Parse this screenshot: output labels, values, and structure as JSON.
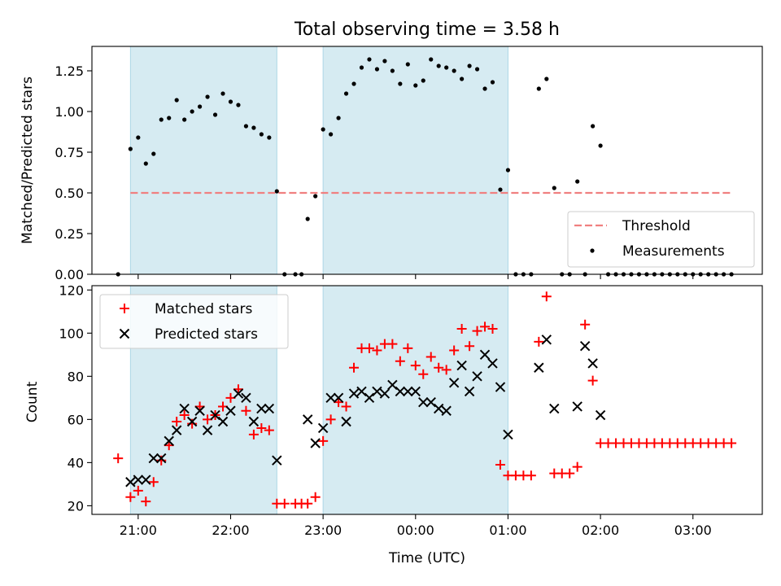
{
  "chart_data": [
    {
      "type": "scatter",
      "title": "Total observing time = 3.58 h",
      "xlabel": "",
      "ylabel": "Matched/Predicted stars",
      "xlim": [
        "20:30",
        "03:45"
      ],
      "ylim": [
        0,
        1.4
      ],
      "yticks": [
        "0.00",
        "0.25",
        "0.50",
        "0.75",
        "1.00",
        "1.25"
      ],
      "shaded_intervals": [
        [
          "20:55",
          "22:30"
        ],
        [
          "23:00",
          "01:00"
        ]
      ],
      "shade_color": "#add8e6",
      "threshold": {
        "name": "Threshold",
        "value": 0.5,
        "x_range": [
          "20:55",
          "03:25"
        ],
        "color": "#f08080"
      },
      "legend": {
        "position": "lower-right",
        "entries": [
          "Threshold",
          "Measurements"
        ]
      },
      "series": [
        {
          "name": "Measurements",
          "color": "#000000",
          "points": [
            [
              "20:47",
              0.0
            ],
            [
              "20:55",
              0.77
            ],
            [
              "21:00",
              0.84
            ],
            [
              "21:05",
              0.68
            ],
            [
              "21:10",
              0.74
            ],
            [
              "21:15",
              0.95
            ],
            [
              "21:20",
              0.96
            ],
            [
              "21:25",
              1.07
            ],
            [
              "21:30",
              0.95
            ],
            [
              "21:35",
              1.0
            ],
            [
              "21:40",
              1.03
            ],
            [
              "21:45",
              1.09
            ],
            [
              "21:50",
              0.98
            ],
            [
              "21:55",
              1.11
            ],
            [
              "22:00",
              1.06
            ],
            [
              "22:05",
              1.04
            ],
            [
              "22:10",
              0.91
            ],
            [
              "22:15",
              0.9
            ],
            [
              "22:20",
              0.86
            ],
            [
              "22:25",
              0.84
            ],
            [
              "22:30",
              0.51
            ],
            [
              "22:35",
              0.0
            ],
            [
              "22:42",
              0.0
            ],
            [
              "22:46",
              0.0
            ],
            [
              "22:50",
              0.34
            ],
            [
              "22:55",
              0.48
            ],
            [
              "23:00",
              0.89
            ],
            [
              "23:05",
              0.86
            ],
            [
              "23:10",
              0.96
            ],
            [
              "23:15",
              1.11
            ],
            [
              "23:20",
              1.17
            ],
            [
              "23:25",
              1.27
            ],
            [
              "23:30",
              1.32
            ],
            [
              "23:35",
              1.26
            ],
            [
              "23:40",
              1.31
            ],
            [
              "23:45",
              1.25
            ],
            [
              "23:50",
              1.17
            ],
            [
              "23:55",
              1.29
            ],
            [
              "00:00",
              1.16
            ],
            [
              "00:05",
              1.19
            ],
            [
              "00:10",
              1.32
            ],
            [
              "00:15",
              1.28
            ],
            [
              "00:20",
              1.27
            ],
            [
              "00:25",
              1.25
            ],
            [
              "00:30",
              1.2
            ],
            [
              "00:35",
              1.28
            ],
            [
              "00:40",
              1.26
            ],
            [
              "00:45",
              1.14
            ],
            [
              "00:50",
              1.18
            ],
            [
              "00:55",
              0.52
            ],
            [
              "01:00",
              0.64
            ],
            [
              "01:05",
              0.0
            ],
            [
              "01:10",
              0.0
            ],
            [
              "01:15",
              0.0
            ],
            [
              "01:20",
              1.14
            ],
            [
              "01:25",
              1.2
            ],
            [
              "01:30",
              0.53
            ],
            [
              "01:35",
              0.0
            ],
            [
              "01:40",
              0.0
            ],
            [
              "01:45",
              0.57
            ],
            [
              "01:50",
              0.0
            ],
            [
              "01:55",
              0.91
            ],
            [
              "02:00",
              0.79
            ],
            [
              "02:05",
              0.0
            ],
            [
              "02:10",
              0.0
            ],
            [
              "02:15",
              0.0
            ],
            [
              "02:20",
              0.0
            ],
            [
              "02:25",
              0.0
            ],
            [
              "02:30",
              0.0
            ],
            [
              "02:35",
              0.0
            ],
            [
              "02:40",
              0.0
            ],
            [
              "02:45",
              0.0
            ],
            [
              "02:50",
              0.0
            ],
            [
              "02:55",
              0.0
            ],
            [
              "03:00",
              0.0
            ],
            [
              "03:05",
              0.0
            ],
            [
              "03:10",
              0.0
            ],
            [
              "03:15",
              0.0
            ],
            [
              "03:20",
              0.0
            ],
            [
              "03:25",
              0.0
            ]
          ]
        }
      ]
    },
    {
      "type": "scatter",
      "title": "",
      "xlabel": "Time (UTC)",
      "ylabel": "Count",
      "xlim": [
        "20:30",
        "03:45"
      ],
      "ylim": [
        16,
        122
      ],
      "yticks": [
        "20",
        "40",
        "60",
        "80",
        "100",
        "120"
      ],
      "xticks": [
        "21:00",
        "22:00",
        "23:00",
        "00:00",
        "01:00",
        "02:00",
        "03:00"
      ],
      "shaded_intervals": [
        [
          "20:55",
          "22:30"
        ],
        [
          "23:00",
          "01:00"
        ]
      ],
      "shade_color": "#add8e6",
      "legend": {
        "position": "upper-left",
        "entries": [
          "Matched stars",
          "Predicted stars"
        ]
      },
      "series": [
        {
          "name": "Matched stars",
          "marker": "+",
          "color": "#ff0000",
          "points": [
            [
              "20:47",
              42
            ],
            [
              "20:55",
              24
            ],
            [
              "21:00",
              27
            ],
            [
              "21:05",
              22
            ],
            [
              "21:10",
              31
            ],
            [
              "21:15",
              41
            ],
            [
              "21:20",
              48
            ],
            [
              "21:25",
              59
            ],
            [
              "21:30",
              62
            ],
            [
              "21:35",
              58
            ],
            [
              "21:40",
              66
            ],
            [
              "21:45",
              60
            ],
            [
              "21:50",
              62
            ],
            [
              "21:55",
              66
            ],
            [
              "22:00",
              70
            ],
            [
              "22:05",
              74
            ],
            [
              "22:10",
              64
            ],
            [
              "22:15",
              53
            ],
            [
              "22:20",
              56
            ],
            [
              "22:25",
              55
            ],
            [
              "22:30",
              21
            ],
            [
              "22:35",
              21
            ],
            [
              "22:42",
              21
            ],
            [
              "22:46",
              21
            ],
            [
              "22:50",
              21
            ],
            [
              "22:55",
              24
            ],
            [
              "23:00",
              50
            ],
            [
              "23:05",
              60
            ],
            [
              "23:10",
              68
            ],
            [
              "23:15",
              66
            ],
            [
              "23:20",
              84
            ],
            [
              "23:25",
              93
            ],
            [
              "23:30",
              93
            ],
            [
              "23:35",
              92
            ],
            [
              "23:40",
              95
            ],
            [
              "23:45",
              95
            ],
            [
              "23:50",
              87
            ],
            [
              "23:55",
              93
            ],
            [
              "00:00",
              85
            ],
            [
              "00:05",
              81
            ],
            [
              "00:10",
              89
            ],
            [
              "00:15",
              84
            ],
            [
              "00:20",
              83
            ],
            [
              "00:25",
              92
            ],
            [
              "00:30",
              102
            ],
            [
              "00:35",
              94
            ],
            [
              "00:40",
              101
            ],
            [
              "00:45",
              103
            ],
            [
              "00:50",
              102
            ],
            [
              "00:55",
              39
            ],
            [
              "01:00",
              34
            ],
            [
              "01:05",
              34
            ],
            [
              "01:10",
              34
            ],
            [
              "01:15",
              34
            ],
            [
              "01:20",
              96
            ],
            [
              "01:25",
              117
            ],
            [
              "01:30",
              35
            ],
            [
              "01:35",
              35
            ],
            [
              "01:40",
              35
            ],
            [
              "01:45",
              38
            ],
            [
              "01:50",
              104
            ],
            [
              "01:55",
              78
            ],
            [
              "02:00",
              49
            ],
            [
              "02:05",
              49
            ],
            [
              "02:10",
              49
            ],
            [
              "02:15",
              49
            ],
            [
              "02:20",
              49
            ],
            [
              "02:25",
              49
            ],
            [
              "02:30",
              49
            ],
            [
              "02:35",
              49
            ],
            [
              "02:40",
              49
            ],
            [
              "02:45",
              49
            ],
            [
              "02:50",
              49
            ],
            [
              "02:55",
              49
            ],
            [
              "03:00",
              49
            ],
            [
              "03:05",
              49
            ],
            [
              "03:10",
              49
            ],
            [
              "03:15",
              49
            ],
            [
              "03:20",
              49
            ],
            [
              "03:25",
              49
            ]
          ]
        },
        {
          "name": "Predicted stars",
          "marker": "x",
          "color": "#000000",
          "points": [
            [
              "20:55",
              31
            ],
            [
              "21:00",
              32
            ],
            [
              "21:05",
              32
            ],
            [
              "21:10",
              42
            ],
            [
              "21:15",
              42
            ],
            [
              "21:20",
              50
            ],
            [
              "21:25",
              55
            ],
            [
              "21:30",
              65
            ],
            [
              "21:35",
              59
            ],
            [
              "21:40",
              64
            ],
            [
              "21:45",
              55
            ],
            [
              "21:50",
              62
            ],
            [
              "21:55",
              59
            ],
            [
              "22:00",
              64
            ],
            [
              "22:05",
              72
            ],
            [
              "22:10",
              70
            ],
            [
              "22:15",
              59
            ],
            [
              "22:20",
              65
            ],
            [
              "22:25",
              65
            ],
            [
              "22:30",
              41
            ],
            [
              "22:50",
              60
            ],
            [
              "22:55",
              49
            ],
            [
              "23:00",
              56
            ],
            [
              "23:05",
              70
            ],
            [
              "23:10",
              70
            ],
            [
              "23:15",
              59
            ],
            [
              "23:20",
              72
            ],
            [
              "23:25",
              73
            ],
            [
              "23:30",
              70
            ],
            [
              "23:35",
              73
            ],
            [
              "23:40",
              72
            ],
            [
              "23:45",
              76
            ],
            [
              "23:50",
              73
            ],
            [
              "23:55",
              73
            ],
            [
              "00:00",
              73
            ],
            [
              "00:05",
              68
            ],
            [
              "00:10",
              68
            ],
            [
              "00:15",
              65
            ],
            [
              "00:20",
              64
            ],
            [
              "00:25",
              77
            ],
            [
              "00:30",
              85
            ],
            [
              "00:35",
              73
            ],
            [
              "00:40",
              80
            ],
            [
              "00:45",
              90
            ],
            [
              "00:50",
              86
            ],
            [
              "00:55",
              75
            ],
            [
              "01:00",
              53
            ],
            [
              "01:20",
              84
            ],
            [
              "01:25",
              97
            ],
            [
              "01:30",
              65
            ],
            [
              "01:45",
              66
            ],
            [
              "01:50",
              94
            ],
            [
              "01:55",
              86
            ],
            [
              "02:00",
              62
            ]
          ]
        }
      ]
    }
  ]
}
